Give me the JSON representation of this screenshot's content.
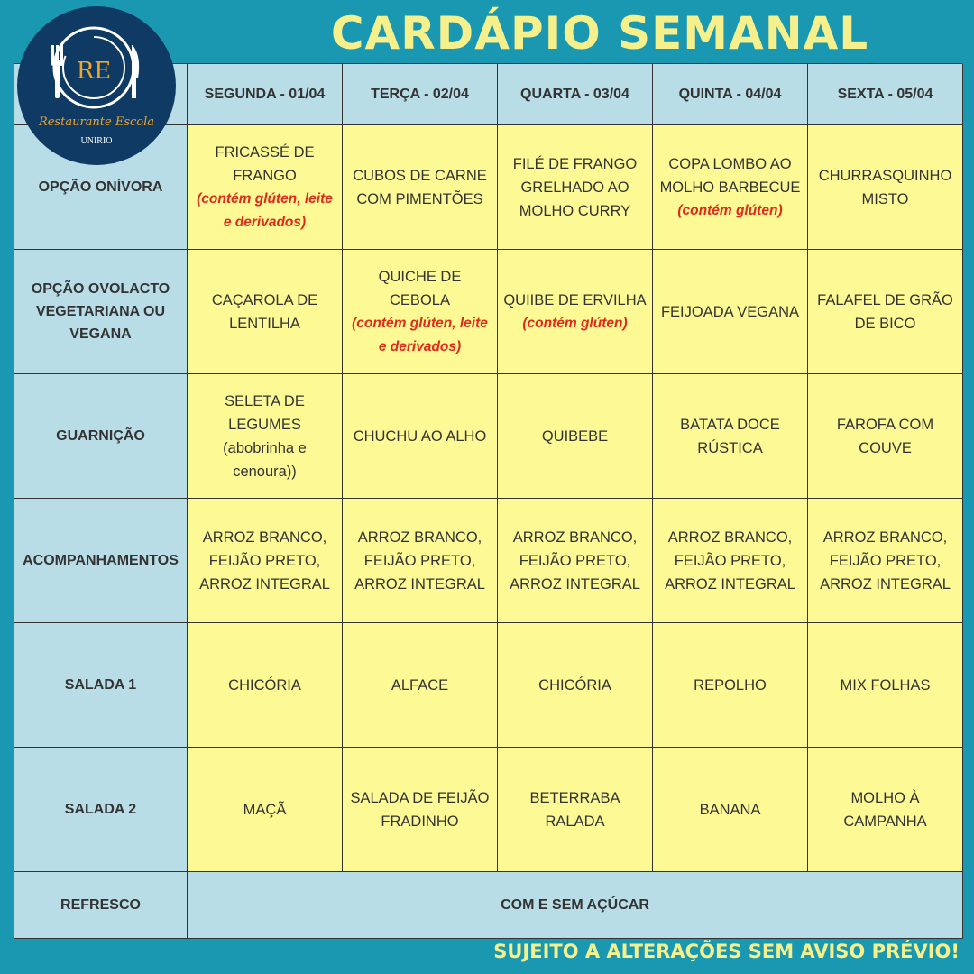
{
  "title": "CARDÁPIO SEMANAL",
  "logo": {
    "initials": "RE",
    "name": "Restaurante Escola",
    "org": "UNIRIO"
  },
  "days": [
    "SEGUNDA - 01/04",
    "TERÇA - 02/04",
    "QUARTA - 03/04",
    "QUINTA - 04/04",
    "SEXTA - 05/04"
  ],
  "rows": [
    {
      "label": "OPÇÃO ONÍVORA",
      "cells": [
        {
          "text": "FRICASSÉ DE FRANGO",
          "note": "(contém glúten, leite e derivados)"
        },
        {
          "text": "CUBOS DE CARNE COM PIMENTÕES"
        },
        {
          "text": "FILÉ DE FRANGO GRELHADO AO MOLHO CURRY"
        },
        {
          "text": "COPA LOMBO AO MOLHO BARBECUE",
          "note": "(contém glúten)"
        },
        {
          "text": "CHURRASQUINHO MISTO"
        }
      ]
    },
    {
      "label": "OPÇÃO OVOLACTO VEGETARIANA OU VEGANA",
      "cells": [
        {
          "text": "CAÇAROLA DE LENTILHA"
        },
        {
          "text": "QUICHE DE CEBOLA",
          "note": "(contém glúten, leite e derivados)"
        },
        {
          "text": "QUIIBE DE ERVILHA",
          "note": "(contém glúten)"
        },
        {
          "text": "FEIJOADA VEGANA"
        },
        {
          "text": "FALAFEL DE GRÃO DE BICO"
        }
      ]
    },
    {
      "label": "GUARNIÇÃO",
      "cells": [
        {
          "text": "SELETA DE LEGUMES (abobrinha e cenoura))"
        },
        {
          "text": "CHUCHU AO ALHO"
        },
        {
          "text": "QUIBEBE"
        },
        {
          "text": "BATATA DOCE RÚSTICA"
        },
        {
          "text": "FAROFA COM COUVE"
        }
      ]
    },
    {
      "label": "ACOMPANHAMENTOS",
      "cells": [
        {
          "text": "ARROZ BRANCO, FEIJÃO PRETO, ARROZ INTEGRAL"
        },
        {
          "text": "ARROZ BRANCO, FEIJÃO PRETO, ARROZ INTEGRAL"
        },
        {
          "text": "ARROZ BRANCO, FEIJÃO PRETO, ARROZ INTEGRAL"
        },
        {
          "text": "ARROZ BRANCO, FEIJÃO PRETO, ARROZ INTEGRAL"
        },
        {
          "text": "ARROZ BRANCO, FEIJÃO PRETO, ARROZ INTEGRAL"
        }
      ]
    },
    {
      "label": "SALADA 1",
      "cells": [
        {
          "text": "CHICÓRIA"
        },
        {
          "text": "ALFACE"
        },
        {
          "text": "CHICÓRIA"
        },
        {
          "text": "REPOLHO"
        },
        {
          "text": "MIX FOLHAS"
        }
      ]
    },
    {
      "label": "SALADA 2",
      "cells": [
        {
          "text": "MAÇÃ"
        },
        {
          "text": "SALADA DE FEIJÃO FRADINHO"
        },
        {
          "text": "BETERRABA RALADA"
        },
        {
          "text": "BANANA"
        },
        {
          "text": "MOLHO À CAMPANHA"
        }
      ]
    }
  ],
  "refresco": {
    "label": "REFRESCO",
    "value": "COM E SEM AÇÚCAR"
  },
  "footer": "SUJEITO A ALTERAÇÕES SEM AVISO PRÉVIO!"
}
